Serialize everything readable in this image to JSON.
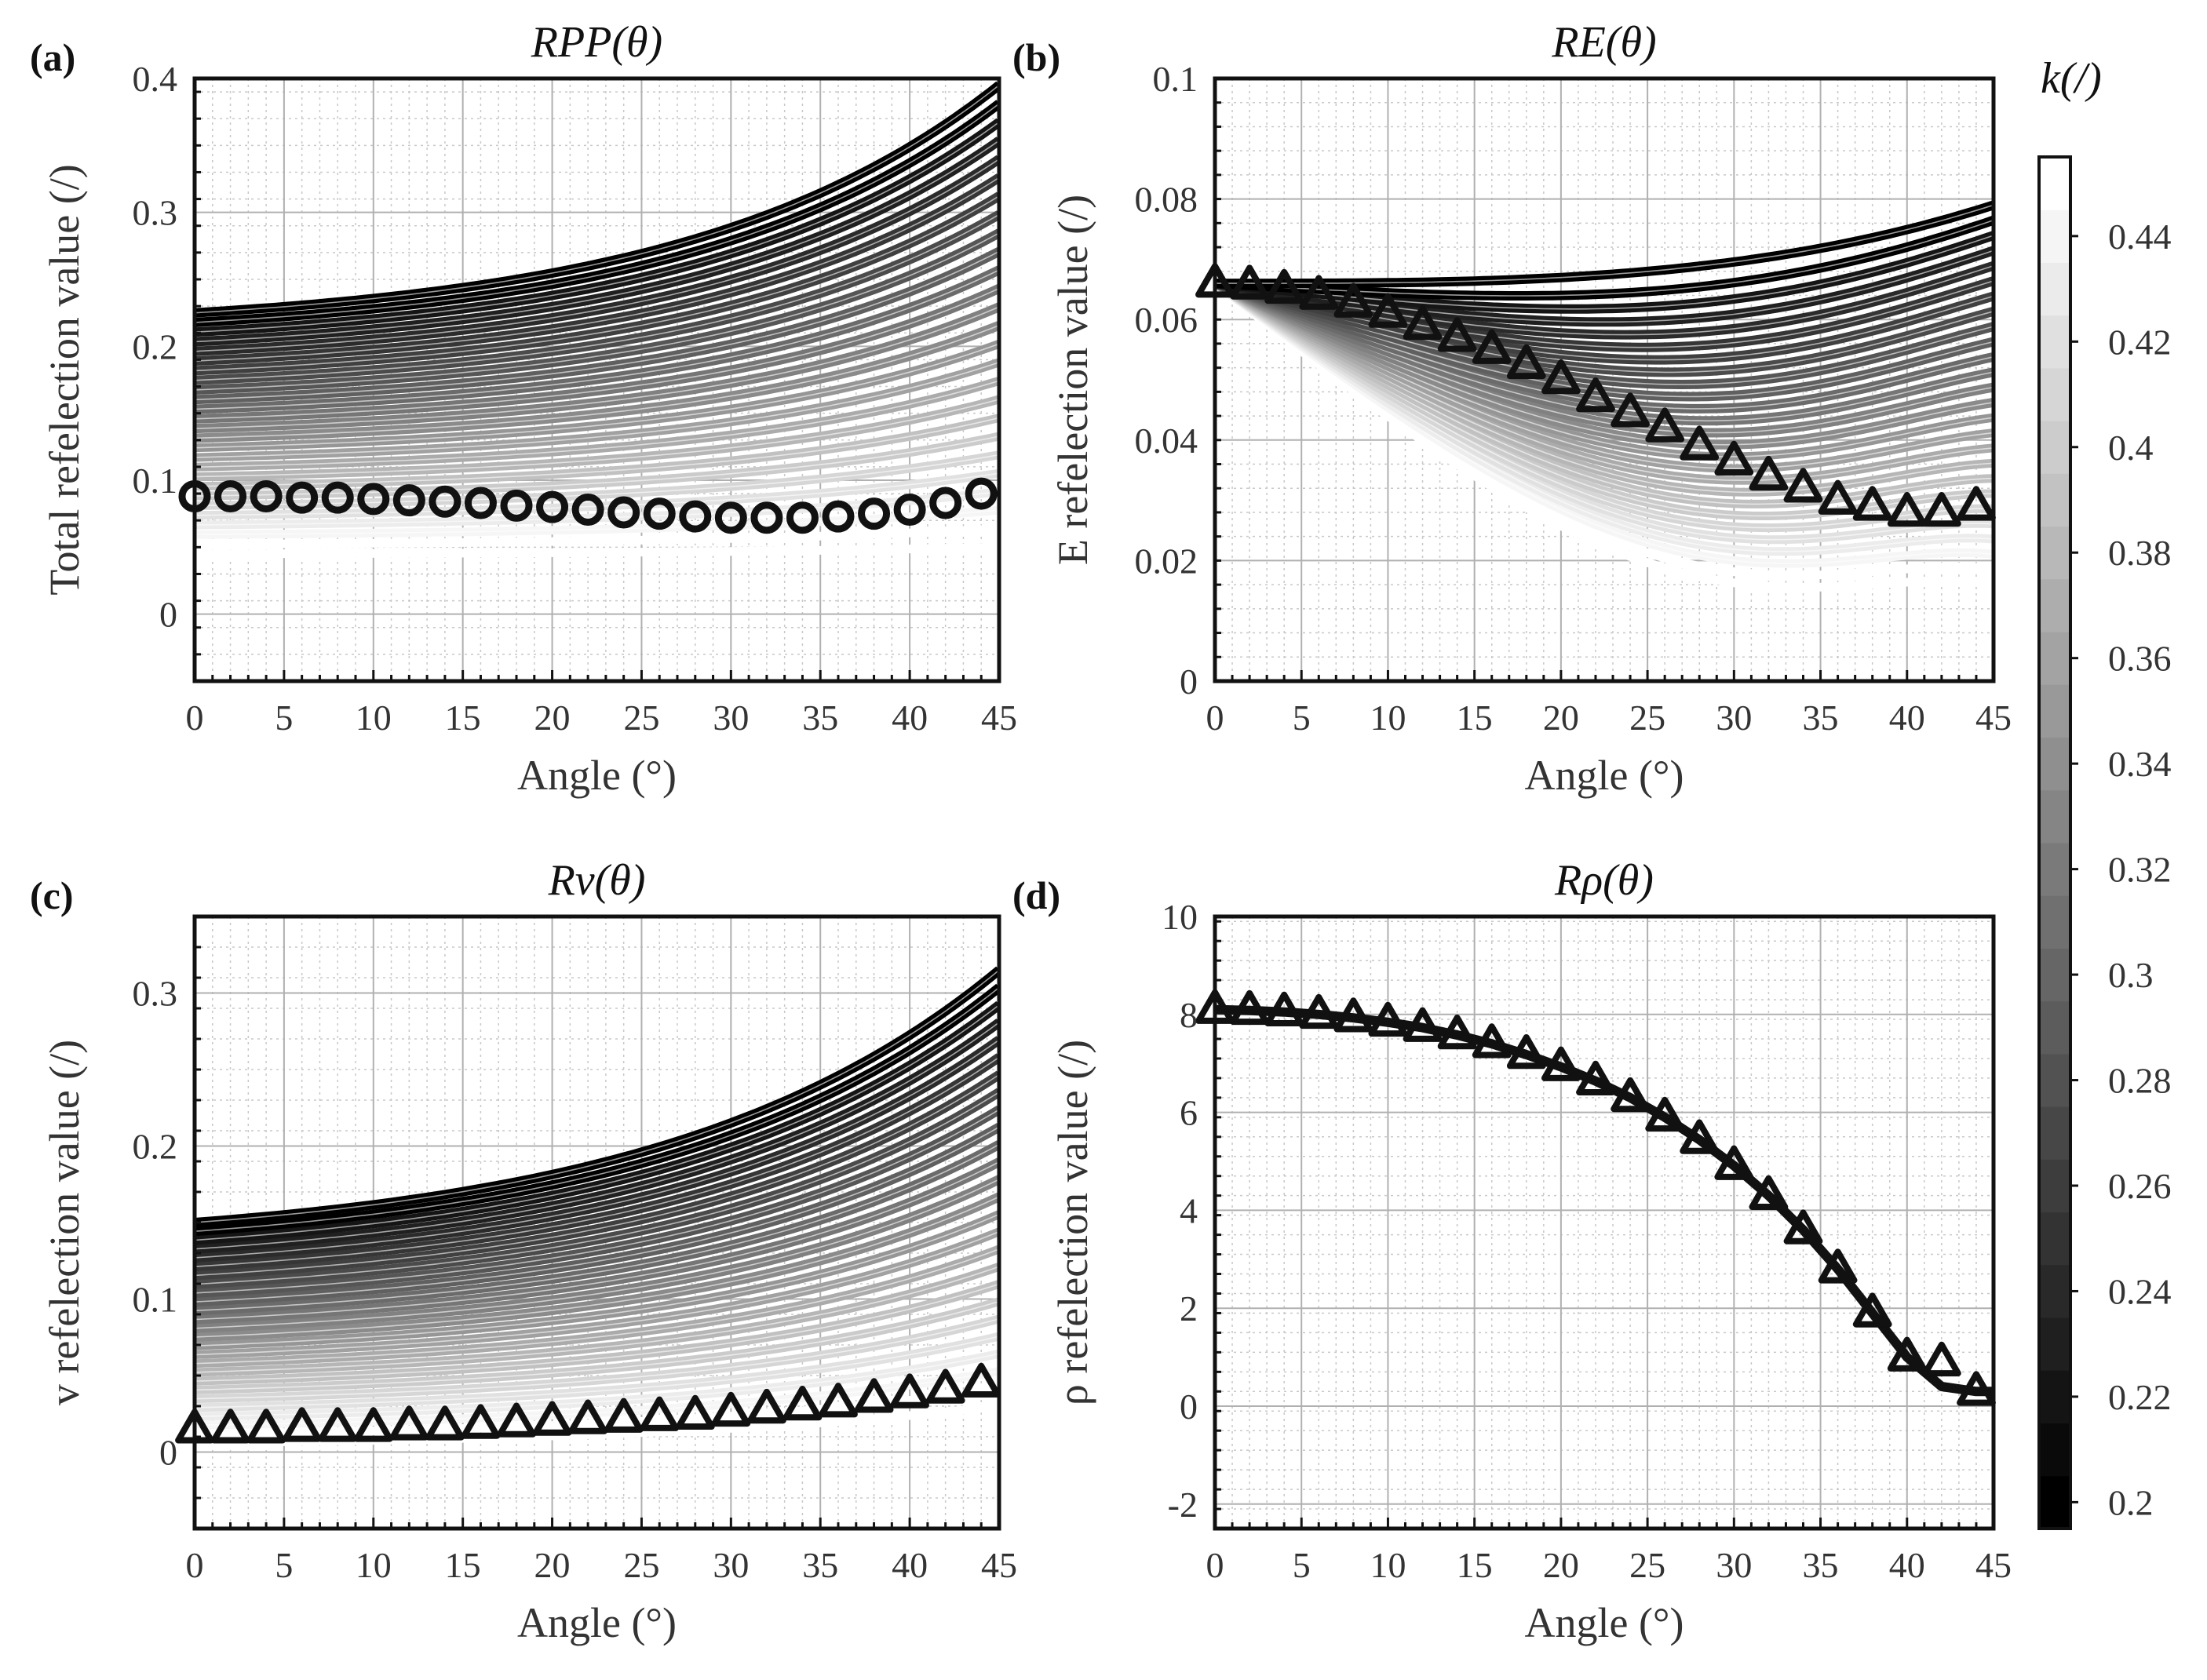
{
  "chart_data": [
    {
      "type": "line",
      "panel": "(a)",
      "title": "R_PP(θ)",
      "title_display": "RPP(θ)",
      "xlabel": "Angle (°)",
      "ylabel": "Total refelection value (/)",
      "xlim": [
        0,
        45
      ],
      "ylim": [
        -0.05,
        0.4
      ],
      "xticks": [
        "0",
        "5",
        "10",
        "15",
        "20",
        "25",
        "30",
        "35",
        "40",
        "45"
      ],
      "yticks": [
        "0",
        "0.1",
        "0.2",
        "0.3",
        "0.4"
      ],
      "ytick_values": [
        0,
        0.1,
        0.2,
        0.3,
        0.4
      ],
      "family": {
        "k_range": [
          0.2,
          0.45
        ],
        "at_0": [
          0.225,
          0.045
        ],
        "at_45": [
          0.395,
          0.05
        ]
      },
      "marker_series": {
        "name": "Total (markers)",
        "marker": "circle",
        "x": [
          0,
          2,
          4,
          6,
          8,
          10,
          12,
          14,
          16,
          18,
          20,
          22,
          24,
          26,
          28,
          30,
          32,
          34,
          36,
          38,
          40,
          42,
          44
        ],
        "y": [
          0.088,
          0.088,
          0.088,
          0.087,
          0.087,
          0.086,
          0.085,
          0.084,
          0.083,
          0.081,
          0.08,
          0.078,
          0.076,
          0.075,
          0.073,
          0.072,
          0.072,
          0.072,
          0.073,
          0.075,
          0.078,
          0.083,
          0.09
        ]
      }
    },
    {
      "type": "line",
      "panel": "(b)",
      "title": "R_E(θ)",
      "title_display": "RE(θ)",
      "xlabel": "Angle (°)",
      "ylabel": "E refelection value (/)",
      "xlim": [
        0,
        45
      ],
      "ylim": [
        0,
        0.1
      ],
      "xticks": [
        "0",
        "5",
        "10",
        "15",
        "20",
        "25",
        "30",
        "35",
        "40",
        "45"
      ],
      "yticks": [
        "0",
        "0.02",
        "0.04",
        "0.06",
        "0.08",
        "0.1"
      ],
      "ytick_values": [
        0,
        0.02,
        0.04,
        0.06,
        0.08,
        0.1
      ],
      "family": {
        "k_range": [
          0.2,
          0.45
        ],
        "at_0": [
          0.066,
          0.066
        ],
        "at_45": [
          0.079,
          0.016
        ]
      },
      "marker_series": {
        "name": "E (markers)",
        "marker": "triangle",
        "x": [
          0,
          2,
          4,
          6,
          8,
          10,
          12,
          14,
          16,
          18,
          20,
          22,
          24,
          26,
          28,
          30,
          32,
          34,
          36,
          38,
          40,
          42,
          44
        ],
        "y": [
          0.066,
          0.0657,
          0.065,
          0.064,
          0.0627,
          0.061,
          0.059,
          0.057,
          0.055,
          0.0525,
          0.05,
          0.047,
          0.0445,
          0.042,
          0.039,
          0.0365,
          0.034,
          0.032,
          0.03,
          0.029,
          0.028,
          0.028,
          0.029
        ]
      }
    },
    {
      "type": "line",
      "panel": "(c)",
      "title": "R_v(θ)",
      "title_display": "Rv(θ)",
      "xlabel": "Angle (°)",
      "ylabel": "v refelection value (/)",
      "xlim": [
        0,
        45
      ],
      "ylim": [
        -0.05,
        0.35
      ],
      "xticks": [
        "0",
        "5",
        "10",
        "15",
        "20",
        "25",
        "30",
        "35",
        "40",
        "45"
      ],
      "yticks": [
        "0",
        "0.1",
        "0.2",
        "0.3"
      ],
      "ytick_values": [
        0,
        0.1,
        0.2,
        0.3
      ],
      "family": {
        "k_range": [
          0.2,
          0.45
        ],
        "at_0": [
          0.15,
          0.006
        ],
        "at_45": [
          0.315,
          0.03
        ]
      },
      "marker_series": {
        "name": "v (markers)",
        "marker": "triangle",
        "x": [
          0,
          2,
          4,
          6,
          8,
          10,
          12,
          14,
          16,
          18,
          20,
          22,
          24,
          26,
          28,
          30,
          32,
          34,
          36,
          38,
          40,
          42,
          44
        ],
        "y": [
          0.015,
          0.015,
          0.015,
          0.016,
          0.016,
          0.016,
          0.017,
          0.017,
          0.018,
          0.019,
          0.02,
          0.021,
          0.022,
          0.023,
          0.024,
          0.026,
          0.028,
          0.03,
          0.032,
          0.035,
          0.038,
          0.041,
          0.045
        ]
      }
    },
    {
      "type": "line",
      "panel": "(d)",
      "title": "R_ρ(θ)",
      "title_display": "Rρ(θ)",
      "xlabel": "Angle (°)",
      "ylabel": "ρ refelection value (/)",
      "xlim": [
        0,
        45
      ],
      "ylim": [
        -2.5,
        10
      ],
      "xticks": [
        "0",
        "5",
        "10",
        "15",
        "20",
        "25",
        "30",
        "35",
        "40",
        "45"
      ],
      "yticks": [
        "-2",
        "0",
        "2",
        "4",
        "6",
        "8",
        "10"
      ],
      "ytick_values": [
        -2,
        0,
        2,
        4,
        6,
        8,
        10
      ],
      "line_series": {
        "x": [
          0,
          2,
          4,
          6,
          8,
          10,
          12,
          14,
          16,
          18,
          20,
          22,
          24,
          26,
          28,
          30,
          32,
          34,
          36,
          38,
          40,
          42,
          44,
          45
        ],
        "y": [
          8.1,
          8.08,
          8.05,
          8.0,
          7.93,
          7.84,
          7.73,
          7.58,
          7.4,
          7.18,
          6.93,
          6.64,
          6.3,
          5.9,
          5.44,
          4.91,
          4.3,
          3.6,
          2.8,
          1.9,
          1.0,
          0.4,
          0.3,
          0.3
        ]
      },
      "marker_series": {
        "name": "ρ (markers)",
        "marker": "triangle",
        "x": [
          0,
          2,
          4,
          6,
          8,
          10,
          12,
          14,
          16,
          18,
          20,
          22,
          24,
          26,
          28,
          30,
          32,
          34,
          36,
          38,
          40,
          42,
          44
        ],
        "y": [
          8.1,
          8.08,
          8.05,
          8.0,
          7.93,
          7.84,
          7.73,
          7.58,
          7.4,
          7.18,
          6.93,
          6.64,
          6.3,
          5.9,
          5.44,
          4.91,
          4.3,
          3.6,
          2.8,
          1.9,
          1.0,
          0.9,
          0.3
        ]
      }
    }
  ],
  "colorbar": {
    "title": "k(/)",
    "range": [
      0.195,
      0.455
    ],
    "ticks": [
      "0.2",
      "0.22",
      "0.24",
      "0.26",
      "0.28",
      "0.3",
      "0.32",
      "0.34",
      "0.36",
      "0.38",
      "0.4",
      "0.42",
      "0.44"
    ],
    "tick_values": [
      0.2,
      0.22,
      0.24,
      0.26,
      0.28,
      0.3,
      0.32,
      0.34,
      0.36,
      0.38,
      0.4,
      0.42,
      0.44
    ],
    "color_low": "#000000",
    "color_high": "#ffffff"
  }
}
